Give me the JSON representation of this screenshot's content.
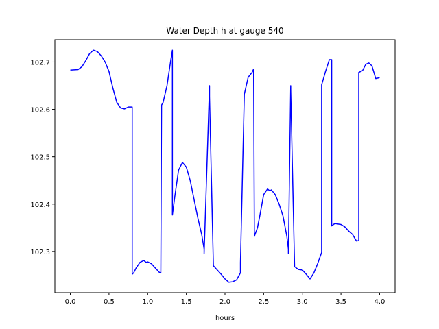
{
  "chart_data": {
    "type": "line",
    "title": "Water Depth h at gauge 540",
    "xlabel": "hours",
    "ylabel": "",
    "xlim": [
      -0.2,
      4.2
    ],
    "ylim": [
      102.213,
      102.747
    ],
    "x_ticks": [
      0.0,
      0.5,
      1.0,
      1.5,
      2.0,
      2.5,
      3.0,
      3.5,
      4.0
    ],
    "x_tick_labels": [
      "0.0",
      "0.5",
      "1.0",
      "1.5",
      "2.0",
      "2.5",
      "3.0",
      "3.5",
      "4.0"
    ],
    "y_ticks": [
      102.3,
      102.4,
      102.5,
      102.6,
      102.7
    ],
    "y_tick_labels": [
      "102.3",
      "102.4",
      "102.5",
      "102.6",
      "102.7"
    ],
    "grid": false,
    "colors": {
      "line": "#0000ff",
      "axes": "#000000",
      "background": "#ffffff"
    },
    "series": [
      {
        "x": [
          0.0,
          0.1,
          0.15,
          0.2,
          0.25,
          0.3,
          0.35,
          0.4,
          0.45,
          0.5,
          0.55,
          0.6,
          0.65,
          0.7,
          0.75,
          0.8,
          0.8,
          0.82,
          0.85,
          0.9,
          0.95,
          0.98,
          1.0,
          1.05,
          1.1,
          1.15,
          1.17,
          1.18,
          1.2,
          1.25,
          1.3,
          1.32,
          1.32,
          1.35,
          1.4,
          1.45,
          1.5,
          1.55,
          1.6,
          1.65,
          1.7,
          1.73,
          1.73,
          1.8,
          1.8,
          1.85,
          1.9,
          1.95,
          2.0,
          2.05,
          2.1,
          2.15,
          2.2,
          2.2,
          2.25,
          2.3,
          2.35,
          2.37,
          2.38,
          2.42,
          2.45,
          2.5,
          2.55,
          2.58,
          2.6,
          2.65,
          2.7,
          2.75,
          2.8,
          2.82,
          2.82,
          2.85,
          2.85,
          2.9,
          2.95,
          3.0,
          3.05,
          3.1,
          3.15,
          3.2,
          3.25,
          3.25,
          3.3,
          3.35,
          3.38,
          3.38,
          3.42,
          3.5,
          3.55,
          3.6,
          3.65,
          3.7,
          3.73,
          3.73,
          3.78,
          3.82,
          3.86,
          3.9,
          3.95,
          4.0
        ],
        "y": [
          102.683,
          102.684,
          102.69,
          102.703,
          102.718,
          102.725,
          102.722,
          102.713,
          102.7,
          102.68,
          102.645,
          102.615,
          102.603,
          102.601,
          102.605,
          102.605,
          102.252,
          102.255,
          102.265,
          102.277,
          102.281,
          102.277,
          102.278,
          102.274,
          102.265,
          102.256,
          102.255,
          102.609,
          102.615,
          102.65,
          102.705,
          102.725,
          102.377,
          102.415,
          102.472,
          102.488,
          102.478,
          102.45,
          102.41,
          102.37,
          102.335,
          102.305,
          102.295,
          102.65,
          102.627,
          102.27,
          102.261,
          102.252,
          102.242,
          102.235,
          102.236,
          102.24,
          102.255,
          102.276,
          102.632,
          102.668,
          102.678,
          102.685,
          102.332,
          102.35,
          102.375,
          102.42,
          102.432,
          102.428,
          102.43,
          102.42,
          102.4,
          102.375,
          102.332,
          102.305,
          102.296,
          102.65,
          102.641,
          102.268,
          102.262,
          102.261,
          102.252,
          102.242,
          102.255,
          102.275,
          102.298,
          102.652,
          102.68,
          102.705,
          102.705,
          102.354,
          102.359,
          102.357,
          102.352,
          102.343,
          102.336,
          102.322,
          102.323,
          102.678,
          102.682,
          102.695,
          102.698,
          102.692,
          102.665,
          102.667
        ]
      }
    ]
  }
}
